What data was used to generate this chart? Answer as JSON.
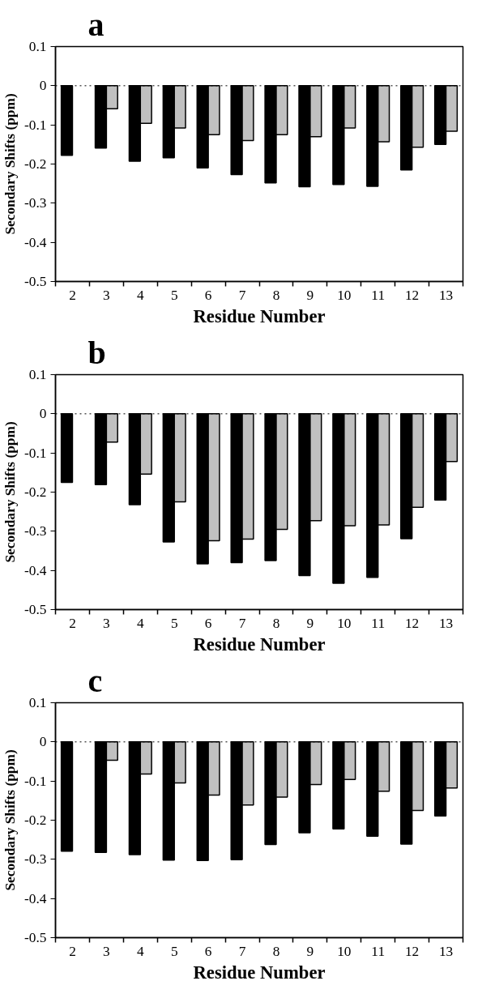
{
  "chart_data": [
    {
      "type": "bar",
      "title": "a",
      "xlabel": "Residue Number",
      "ylabel": "Secondary Shifts (ppm)",
      "categories": [
        "2",
        "3",
        "4",
        "5",
        "6",
        "7",
        "8",
        "9",
        "10",
        "11",
        "12",
        "13"
      ],
      "series": [
        {
          "color": "#000000",
          "values": [
            -0.178,
            -0.159,
            -0.193,
            -0.184,
            -0.21,
            -0.227,
            -0.248,
            -0.258,
            -0.252,
            -0.257,
            -0.215,
            -0.15
          ]
        },
        {
          "color": "#c0c0c0",
          "values": [
            null,
            -0.059,
            -0.096,
            -0.108,
            -0.125,
            -0.14,
            -0.125,
            -0.13,
            -0.108,
            -0.143,
            -0.157,
            -0.116
          ]
        }
      ],
      "ylim": [
        -0.5,
        0.1
      ],
      "yticks": [
        -0.5,
        -0.4,
        -0.3,
        -0.2,
        -0.1,
        0,
        0.1
      ],
      "grid": false,
      "ref_lines": [
        {
          "axis": "y",
          "value": 0,
          "color": "#000000",
          "line_style": "dotted"
        }
      ]
    },
    {
      "type": "bar",
      "title": "b",
      "xlabel": "Residue Number",
      "ylabel": "Secondary Shifts (ppm)",
      "categories": [
        "2",
        "3",
        "4",
        "5",
        "6",
        "7",
        "8",
        "9",
        "10",
        "11",
        "12",
        "13"
      ],
      "series": [
        {
          "color": "#000000",
          "values": [
            -0.175,
            -0.181,
            -0.232,
            -0.327,
            -0.383,
            -0.38,
            -0.375,
            -0.413,
            -0.433,
            -0.418,
            -0.319,
            -0.22
          ]
        },
        {
          "color": "#c0c0c0",
          "values": [
            null,
            -0.072,
            -0.154,
            -0.225,
            -0.324,
            -0.32,
            -0.295,
            -0.273,
            -0.286,
            -0.284,
            -0.239,
            -0.122
          ]
        }
      ],
      "ylim": [
        -0.5,
        0.1
      ],
      "yticks": [
        -0.5,
        -0.4,
        -0.3,
        -0.2,
        -0.1,
        0,
        0.1
      ],
      "grid": false,
      "ref_lines": [
        {
          "axis": "y",
          "value": 0,
          "color": "#000000",
          "line_style": "dotted"
        }
      ]
    },
    {
      "type": "bar",
      "title": "c",
      "xlabel": "Residue Number",
      "ylabel": "Secondary Shifts (ppm)",
      "categories": [
        "2",
        "3",
        "4",
        "5",
        "6",
        "7",
        "8",
        "9",
        "10",
        "11",
        "12",
        "13"
      ],
      "series": [
        {
          "color": "#000000",
          "values": [
            -0.279,
            -0.282,
            -0.288,
            -0.302,
            -0.303,
            -0.301,
            -0.262,
            -0.232,
            -0.222,
            -0.241,
            -0.261,
            -0.189
          ]
        },
        {
          "color": "#c0c0c0",
          "values": [
            null,
            -0.047,
            -0.082,
            -0.105,
            -0.136,
            -0.161,
            -0.141,
            -0.109,
            -0.096,
            -0.126,
            -0.175,
            -0.118
          ]
        }
      ],
      "ylim": [
        -0.5,
        0.1
      ],
      "yticks": [
        -0.5,
        -0.4,
        -0.3,
        -0.2,
        -0.1,
        0,
        0.1
      ],
      "grid": false,
      "ref_lines": [
        {
          "axis": "y",
          "value": 0,
          "color": "#000000",
          "line_style": "dotted"
        }
      ]
    }
  ]
}
